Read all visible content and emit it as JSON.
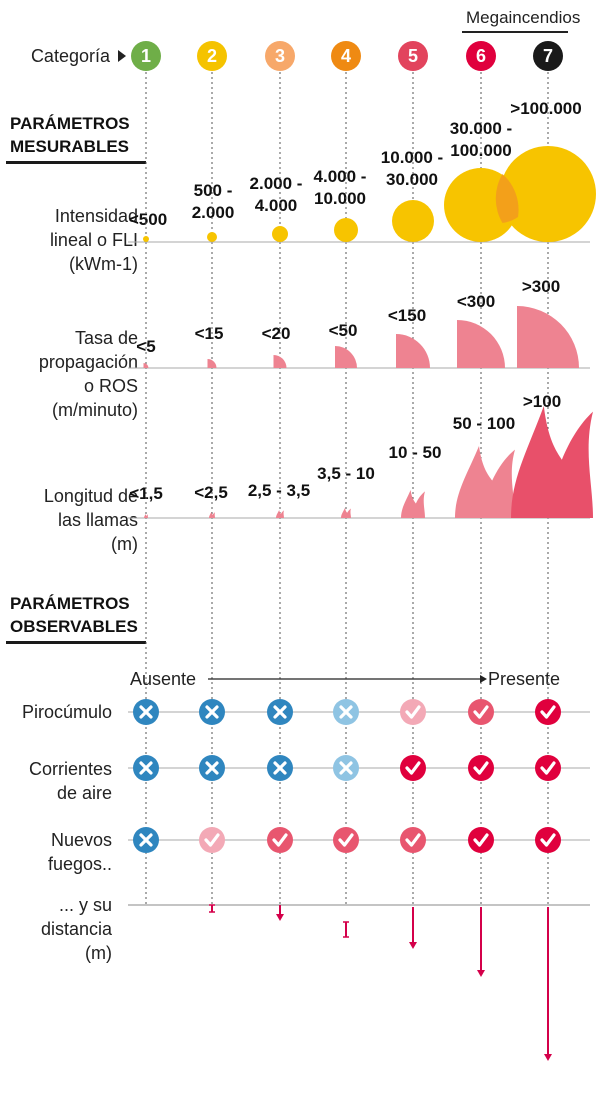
{
  "header": {
    "label": "Categoría",
    "mega_label": "Megaincendios",
    "categories": [
      {
        "n": "1",
        "color": "#6fae48"
      },
      {
        "n": "2",
        "color": "#f5c300"
      },
      {
        "n": "3",
        "color": "#f7a86a"
      },
      {
        "n": "4",
        "color": "#ef8a13"
      },
      {
        "n": "5",
        "color": "#e2445d"
      },
      {
        "n": "6",
        "color": "#e0003d"
      },
      {
        "n": "7",
        "color": "#1a1a1a"
      }
    ]
  },
  "sections": {
    "measurable": [
      "PARÁMETROS",
      "MESURABLES"
    ],
    "observable": [
      "PARÁMETROS",
      "OBSERVABLES"
    ]
  },
  "fli": {
    "label": [
      "Intensidad",
      "lineal o FLI",
      "(kWm-1)"
    ],
    "values": [
      [
        "<500"
      ],
      [
        "500 -",
        "2.000"
      ],
      [
        "2.000 -",
        "4.000"
      ],
      [
        "4.000 -",
        "10.000"
      ],
      [
        "10.000 -",
        "30.000"
      ],
      [
        "30.000 -",
        "100.000"
      ],
      [
        ">100.000"
      ]
    ]
  },
  "ros": {
    "label": [
      "Tasa de",
      "propagación",
      "o ROS",
      "(m/minuto)"
    ],
    "values": [
      "<5",
      "<15",
      "<20",
      "<50",
      "<150",
      "<300",
      ">300"
    ]
  },
  "flame": {
    "label": [
      "Longitud de",
      "las llamas",
      "(m)"
    ],
    "values": [
      "<1,5",
      "<2,5",
      "2,5 - 3,5",
      "3,5 - 10",
      "10 - 50",
      "50 - 100",
      ">100"
    ]
  },
  "scale": {
    "absent": "Ausente",
    "present": "Presente"
  },
  "observables": [
    {
      "label": [
        "Pirocúmulo"
      ],
      "states": [
        "no",
        "no",
        "no",
        "no-light",
        "yes-light",
        "yes-mid",
        "yes"
      ]
    },
    {
      "label": [
        "Corrientes",
        "de aire"
      ],
      "states": [
        "no",
        "no",
        "no",
        "no-light",
        "yes",
        "yes",
        "yes"
      ]
    },
    {
      "label": [
        "Nuevos",
        "fuegos.."
      ],
      "states": [
        "no",
        "yes-light",
        "yes-mid",
        "yes-mid",
        "yes-mid",
        "yes",
        "yes"
      ]
    }
  ],
  "distance": {
    "label": [
      "... y su",
      "distancia",
      "(m)"
    ]
  },
  "colors": {
    "yellow": "#f7c400",
    "orange_overlap": "#f29a1e",
    "pink": "#ee8391",
    "flame": "#e8506a",
    "blue": "#2f86bf",
    "blue_light": "#8fc4e3",
    "red": "#e0003d",
    "red_light": "#f3a9b6",
    "red_mid": "#e8566f",
    "arrow": "#d4004a"
  }
}
